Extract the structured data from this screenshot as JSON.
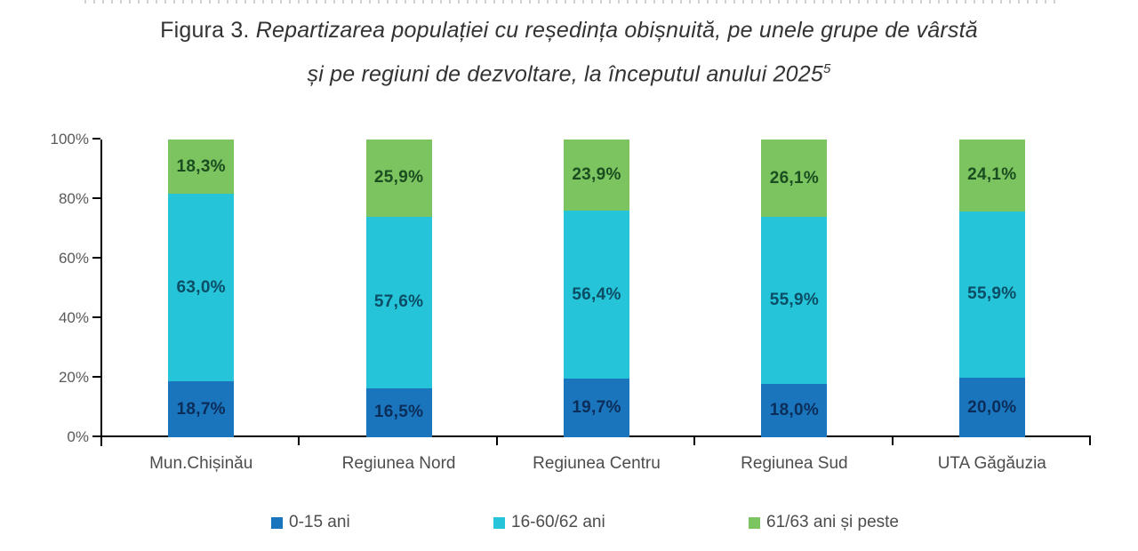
{
  "title": {
    "prefix": "Figura 3.",
    "line1": "Repartizarea populației cu reședința obișnuită, pe unele grupe de vârstă",
    "line2": "și pe regiuni de dezvoltare, la începutul anului 2025",
    "superscript": "5"
  },
  "chart_data": {
    "type": "bar",
    "stacked": true,
    "units": "percent",
    "title": "Figura 3. Repartizarea populației cu reședința obișnuită, pe unele grupe de vârstă și pe regiuni de dezvoltare, la începutul anului 2025",
    "categories": [
      "Mun.Chișinău",
      "Regiunea Nord",
      "Regiunea Centru",
      "Regiunea Sud",
      "UTA Găgăuzia"
    ],
    "series": [
      {
        "name": "0-15 ani",
        "color": "#1B75BC",
        "label_color": "#0B2D59",
        "values": [
          18.7,
          16.5,
          19.7,
          18.0,
          20.0
        ],
        "labels": [
          "18,7%",
          "16,5%",
          "19,7%",
          "18,0%",
          "20,0%"
        ]
      },
      {
        "name": "16-60/62 ani",
        "color": "#26C4D8",
        "label_color": "#0C4D66",
        "values": [
          63.0,
          57.6,
          56.4,
          55.9,
          55.9
        ],
        "labels": [
          "63,0%",
          "57,6%",
          "56,4%",
          "55,9%",
          "55,9%"
        ]
      },
      {
        "name": "61/63 ani și peste",
        "color": "#7CC45F",
        "label_color": "#1A4D20",
        "values": [
          18.3,
          25.9,
          23.9,
          26.1,
          24.1
        ],
        "labels": [
          "18,3%",
          "25,9%",
          "23,9%",
          "26,1%",
          "24,1%"
        ]
      }
    ],
    "y_axis": {
      "min": 0,
      "max": 100,
      "tick_labels": [
        "0%",
        "20%",
        "40%",
        "60%",
        "80%",
        "100%"
      ]
    },
    "legend_position": "bottom",
    "grid": false,
    "axis_color": "#000000",
    "tick_label_color": "#595959",
    "category_label_color": "#4D4D4D"
  }
}
